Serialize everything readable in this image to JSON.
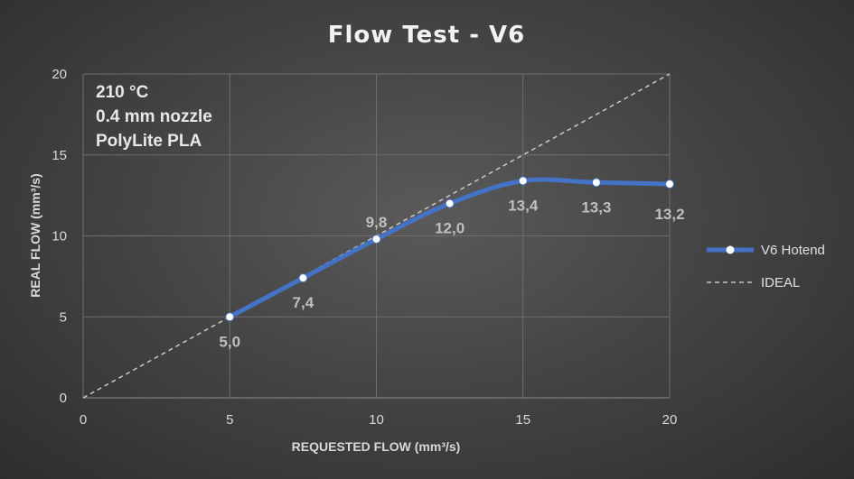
{
  "chart_data": {
    "type": "line",
    "title": "Flow Test - V6",
    "xlabel": "REQUESTED FLOW (mm³/s)",
    "ylabel": "REAL FLOW (mm³/s)",
    "xlim": [
      0,
      20
    ],
    "ylim": [
      0,
      20
    ],
    "xticks": [
      "0",
      "5",
      "10",
      "15",
      "20"
    ],
    "yticks": [
      "0",
      "5",
      "10",
      "15",
      "20"
    ],
    "grid": true,
    "legend_position": "right",
    "annotations": [
      "210 °C",
      "0.4 mm nozzle",
      "PolyLite PLA"
    ],
    "series": [
      {
        "name": "V6 Hotend",
        "color": "#4472c4",
        "x": [
          5,
          7.5,
          10,
          12.5,
          15,
          17.5,
          20
        ],
        "y": [
          5.0,
          7.4,
          9.8,
          12.0,
          13.4,
          13.3,
          13.2
        ],
        "labels": [
          "5,0",
          "7,4",
          "9,8",
          "12,0",
          "13,4",
          "13,3",
          "13,2"
        ]
      },
      {
        "name": "IDEAL",
        "color": "#c8c8c8",
        "dashed": true,
        "x": [
          0,
          20
        ],
        "y": [
          0,
          20
        ]
      }
    ]
  }
}
